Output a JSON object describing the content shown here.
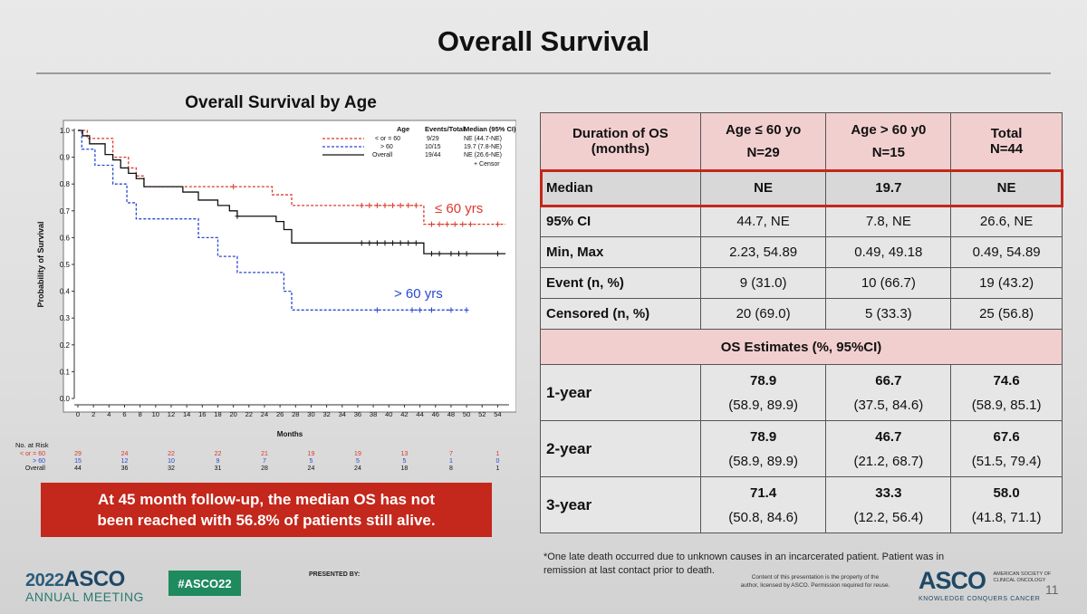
{
  "slide_title": "Overall Survival",
  "chart": {
    "title": "Overall Survival by Age",
    "legend": {
      "headers": [
        "Age",
        "Events/Total",
        "Median (95% CI)"
      ],
      "rows": [
        {
          "age": "< or = 60",
          "events": "9/29",
          "median": "NE (44.7-NE)"
        },
        {
          "age": "> 60",
          "events": "10/15",
          "median": "19.7 (7.8-NE)"
        },
        {
          "age": "Overall",
          "events": "19/44",
          "median": "NE (26.6-NE)"
        }
      ],
      "censor": "+ Censor"
    },
    "label_le60": "≤ 60 yrs",
    "label_gt60": "> 60 yrs",
    "risk_table": {
      "title": "No. at Risk",
      "rows": [
        {
          "name": "< or = 60",
          "color": "#d93a2a",
          "values": [
            "29",
            "24",
            "22",
            "22",
            "21",
            "19",
            "19",
            "13",
            "7",
            "1"
          ]
        },
        {
          "name": "> 60",
          "color": "#2a48d0",
          "values": [
            "15",
            "12",
            "10",
            "9",
            "7",
            "5",
            "5",
            "5",
            "1",
            "0"
          ]
        },
        {
          "name": "Overall",
          "color": "#111111",
          "values": [
            "44",
            "36",
            "32",
            "31",
            "28",
            "24",
            "24",
            "18",
            "8",
            "1"
          ]
        }
      ]
    }
  },
  "chart_data": {
    "type": "line",
    "title": "Overall Survival by Age",
    "xlabel": "Months",
    "ylabel": "Probability of Survival",
    "xlim": [
      0,
      55
    ],
    "ylim": [
      0,
      1.0
    ],
    "xticks": [
      "0",
      "2",
      "4",
      "6",
      "8",
      "10",
      "12",
      "14",
      "16",
      "18",
      "20",
      "22",
      "24",
      "26",
      "28",
      "30",
      "32",
      "34",
      "36",
      "38",
      "40",
      "42",
      "44",
      "46",
      "48",
      "50",
      "52",
      "54"
    ],
    "yticks": [
      "0.0",
      "0.1",
      "0.2",
      "0.3",
      "0.4",
      "0.5",
      "0.6",
      "0.7",
      "0.8",
      "0.9",
      "1.0"
    ],
    "risk_times": [
      0,
      6,
      12,
      18,
      24,
      30,
      36,
      42,
      48,
      54
    ],
    "series": [
      {
        "name": "< or = 60",
        "color": "#d93a2a",
        "dashed": true,
        "steps": [
          [
            0,
            1.0
          ],
          [
            1.2,
            0.97
          ],
          [
            4.5,
            0.9
          ],
          [
            6.5,
            0.86
          ],
          [
            7.5,
            0.83
          ],
          [
            8.5,
            0.79
          ],
          [
            25,
            0.76
          ],
          [
            27.5,
            0.72
          ],
          [
            44.5,
            0.65
          ],
          [
            55,
            0.65
          ]
        ],
        "censors": [
          [
            20,
            0.79
          ],
          [
            36.5,
            0.72
          ],
          [
            37.5,
            0.72
          ],
          [
            38.5,
            0.72
          ],
          [
            39.5,
            0.72
          ],
          [
            40.5,
            0.72
          ],
          [
            41.5,
            0.72
          ],
          [
            42.5,
            0.72
          ],
          [
            43.5,
            0.72
          ],
          [
            45.5,
            0.65
          ],
          [
            46.5,
            0.65
          ],
          [
            47.5,
            0.65
          ],
          [
            48.5,
            0.65
          ],
          [
            49.5,
            0.65
          ],
          [
            50.5,
            0.65
          ],
          [
            54,
            0.65
          ]
        ]
      },
      {
        "name": "> 60",
        "color": "#2a48d0",
        "dashed": true,
        "steps": [
          [
            0,
            1.0
          ],
          [
            0.5,
            0.93
          ],
          [
            2.2,
            0.87
          ],
          [
            4.5,
            0.8
          ],
          [
            6.3,
            0.73
          ],
          [
            7.5,
            0.67
          ],
          [
            15.5,
            0.6
          ],
          [
            18,
            0.53
          ],
          [
            20.5,
            0.47
          ],
          [
            26.5,
            0.4
          ],
          [
            27.5,
            0.33
          ],
          [
            50,
            0.33
          ]
        ],
        "censors": [
          [
            38.5,
            0.33
          ],
          [
            43,
            0.33
          ],
          [
            44,
            0.33
          ],
          [
            45.5,
            0.33
          ],
          [
            48,
            0.33
          ],
          [
            50,
            0.33
          ]
        ]
      },
      {
        "name": "Overall",
        "color": "#111111",
        "dashed": false,
        "steps": [
          [
            0,
            1.0
          ],
          [
            0.6,
            0.98
          ],
          [
            1.5,
            0.95
          ],
          [
            3.5,
            0.91
          ],
          [
            4.5,
            0.89
          ],
          [
            5.5,
            0.86
          ],
          [
            6.5,
            0.84
          ],
          [
            7.5,
            0.82
          ],
          [
            8.5,
            0.79
          ],
          [
            13.5,
            0.77
          ],
          [
            15.5,
            0.74
          ],
          [
            18,
            0.72
          ],
          [
            19.5,
            0.7
          ],
          [
            20.5,
            0.68
          ],
          [
            25.5,
            0.66
          ],
          [
            26.5,
            0.63
          ],
          [
            27.5,
            0.58
          ],
          [
            44.5,
            0.54
          ],
          [
            55,
            0.54
          ]
        ],
        "censors": [
          [
            20.5,
            0.68
          ],
          [
            36.5,
            0.58
          ],
          [
            37.5,
            0.58
          ],
          [
            38.5,
            0.58
          ],
          [
            39.5,
            0.58
          ],
          [
            40.5,
            0.58
          ],
          [
            41.5,
            0.58
          ],
          [
            42.5,
            0.58
          ],
          [
            43.5,
            0.58
          ],
          [
            45.5,
            0.54
          ],
          [
            46.5,
            0.54
          ],
          [
            48,
            0.54
          ],
          [
            49,
            0.54
          ],
          [
            50,
            0.54
          ],
          [
            54,
            0.54
          ]
        ]
      }
    ]
  },
  "callout": {
    "line1": "At 45 month follow-up, the median OS has not",
    "line2": "been reached with 56.8% of patients still alive."
  },
  "table": {
    "header": {
      "c0_l1": "Duration of OS",
      "c0_l2": "(months)",
      "c1_l1": "Age ≤ 60 yo",
      "c1_l2": "N=29",
      "c2_l1": "Age > 60 y0",
      "c2_l2": "N=15",
      "c3_l1": "Total",
      "c3_l2": "N=44"
    },
    "median": {
      "label": "Median",
      "c1": "NE",
      "c2": "19.7",
      "c3": "NE"
    },
    "rows": [
      {
        "label": "95% CI",
        "c1": "44.7, NE",
        "c2": "7.8, NE",
        "c3": "26.6, NE"
      },
      {
        "label": "Min, Max",
        "c1": "2.23, 54.89",
        "c2": "0.49, 49.18",
        "c3": "0.49, 54.89"
      },
      {
        "label": "Event (n, %)",
        "c1": "9 (31.0)",
        "c2": "10 (66.7)",
        "c3": "19 (43.2)"
      },
      {
        "label": "Censored (n, %)",
        "c1": "20 (69.0)",
        "c2": "5 (33.3)",
        "c3": "25 (56.8)"
      }
    ],
    "estimates_title": "OS Estimates (%, 95%CI)",
    "years": [
      {
        "label": "1-year",
        "c1": "78.9",
        "c1ci": "(58.9, 89.9)",
        "c2": "66.7",
        "c2ci": "(37.5, 84.6)",
        "c3": "74.6",
        "c3ci": "(58.9, 85.1)"
      },
      {
        "label": "2-year",
        "c1": "78.9",
        "c1ci": "(58.9, 89.9)",
        "c2": "46.7",
        "c2ci": "(21.2, 68.7)",
        "c3": "67.6",
        "c3ci": "(51.5, 79.4)"
      },
      {
        "label": "3-year",
        "c1": "71.4",
        "c1ci": "(50.8, 84.6)",
        "c2": "33.3",
        "c2ci": "(12.2, 56.4)",
        "c3": "58.0",
        "c3ci": "(41.8, 71.1)"
      }
    ]
  },
  "footnote": {
    "line1": "*One late death occurred due to unknown causes in an incarcerated patient. Patient was in",
    "line2": "remission at last contact prior to death."
  },
  "footer": {
    "year": "2022",
    "brand": "ASCO",
    "meeting": "ANNUAL MEETING",
    "hashtag": "#ASCO22",
    "presented_by": "PRESENTED BY:",
    "copyright_l1": "Content of this presentation is the property of the",
    "copyright_l2": "author, licensed by ASCO. Permission required for reuse.",
    "right_logo": "ASCO",
    "right_org_l1": "AMERICAN SOCIETY OF",
    "right_org_l2": "CLINICAL ONCOLOGY",
    "right_tagline": "KNOWLEDGE CONQUERS CANCER",
    "slide_number": "11"
  },
  "colors": {
    "accent_red": "#c4271b",
    "table_header": "#f2cfcf",
    "median_border": "#c4271b",
    "asco_blue": "#1f4866",
    "hashtag_green": "#1e8a5e"
  }
}
